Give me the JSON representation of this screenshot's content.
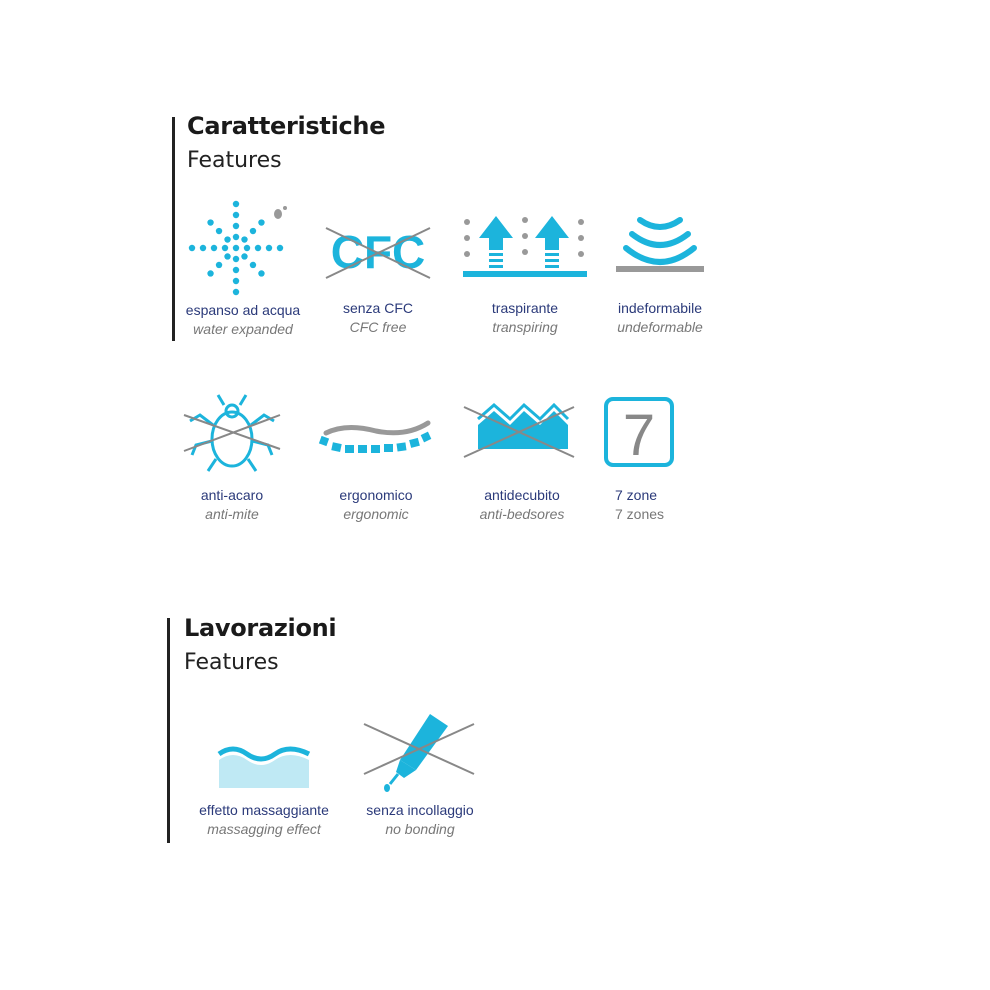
{
  "colors": {
    "accent": "#1cb4dc",
    "label": "#2b3a7a",
    "secondary": "#888888"
  },
  "sections": [
    {
      "title": "Caratteristiche",
      "subtitle": "Features",
      "items": [
        {
          "it": "espanso ad acqua",
          "en": "water expanded",
          "icon": "water-expanded-icon"
        },
        {
          "it": "senza CFC",
          "en": "CFC free",
          "icon": "cfc-free-icon",
          "icon_text": "CFC"
        },
        {
          "it": "traspirante",
          "en": "transpiring",
          "icon": "breathable-arrows-icon"
        },
        {
          "it": "indeformabile",
          "en": "undeformable",
          "icon": "undeformable-waves-icon"
        },
        {
          "it": "anti-acaro",
          "en": "anti-mite",
          "icon": "anti-mite-icon"
        },
        {
          "it": "ergonomico",
          "en": "ergonomic",
          "icon": "ergonomic-spine-icon"
        },
        {
          "it": "antidecubito",
          "en": "anti-bedsores",
          "icon": "anti-bedsore-icon"
        },
        {
          "it": "7 zone",
          "en": "7 zones",
          "icon": "seven-zones-icon",
          "icon_text": "7"
        }
      ]
    },
    {
      "title": "Lavorazioni",
      "subtitle": "Features",
      "items": [
        {
          "it": "effetto massaggiante",
          "en": "massagging effect",
          "icon": "massage-wave-icon"
        },
        {
          "it": "senza incollaggio",
          "en": "no bonding",
          "icon": "no-glue-icon"
        }
      ]
    }
  ]
}
